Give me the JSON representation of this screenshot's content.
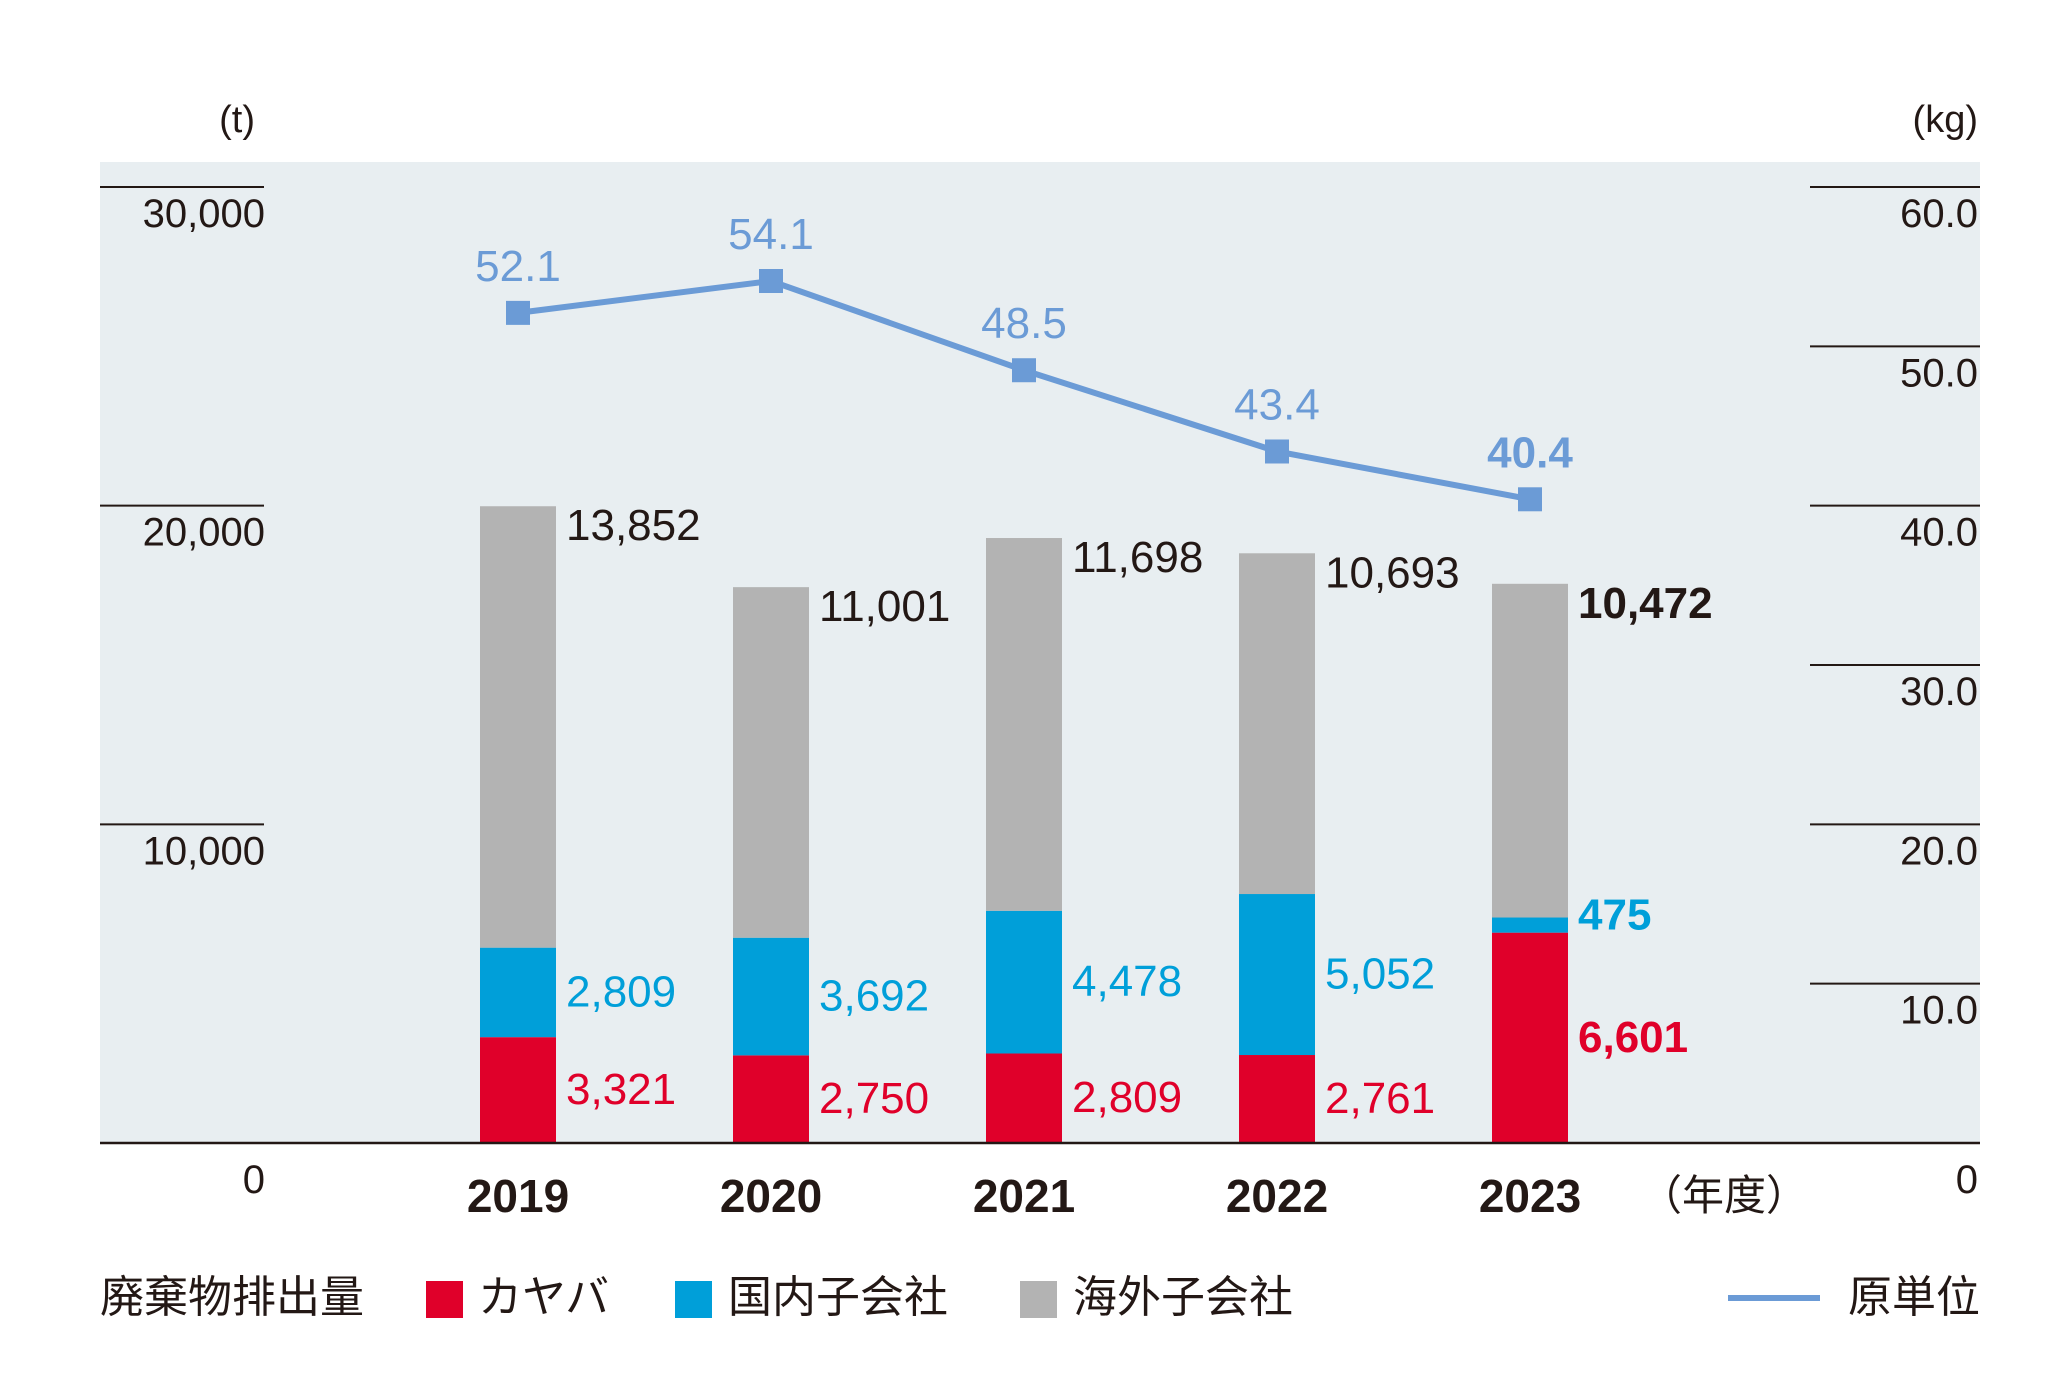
{
  "chart_data": {
    "type": "bar",
    "stacked": true,
    "categories": [
      "2019",
      "2020",
      "2021",
      "2022",
      "2023"
    ],
    "x_unit_label": "（年度）",
    "y_left": {
      "unit_label": "(t)",
      "ylim": [
        0,
        30000
      ],
      "ticks": [
        "0",
        "10,000",
        "20,000",
        "30,000"
      ]
    },
    "y_right": {
      "unit_label": "(kg)",
      "ylim": [
        0,
        60
      ],
      "ticks": [
        "0",
        "10.0",
        "20.0",
        "30.0",
        "40.0",
        "50.0",
        "60.0"
      ]
    },
    "series": [
      {
        "name": "カヤバ",
        "color": "#e0002a",
        "values": [
          3321,
          2750,
          2809,
          2761,
          6601
        ],
        "labels": [
          "3,321",
          "2,750",
          "2,809",
          "2,761",
          "6,601"
        ]
      },
      {
        "name": "国内子会社",
        "color": "#009fd9",
        "values": [
          2809,
          3692,
          4478,
          5052,
          475
        ],
        "labels": [
          "2,809",
          "3,692",
          "4,478",
          "5,052",
          "475"
        ]
      },
      {
        "name": "海外子会社",
        "color": "#b3b3b3",
        "values": [
          13852,
          11001,
          11698,
          10693,
          10472
        ],
        "labels": [
          "13,852",
          "11,001",
          "11,698",
          "10,693",
          "10,472"
        ]
      }
    ],
    "line": {
      "name": "原単位",
      "color": "#6b9bd6",
      "axis": "right",
      "values": [
        52.1,
        54.1,
        48.5,
        43.4,
        40.4
      ],
      "labels": [
        "52.1",
        "54.1",
        "48.5",
        "43.4",
        "40.4"
      ]
    },
    "legend": {
      "title": "廃棄物排出量",
      "placement": "bottom"
    },
    "highlight_category": "2023"
  }
}
